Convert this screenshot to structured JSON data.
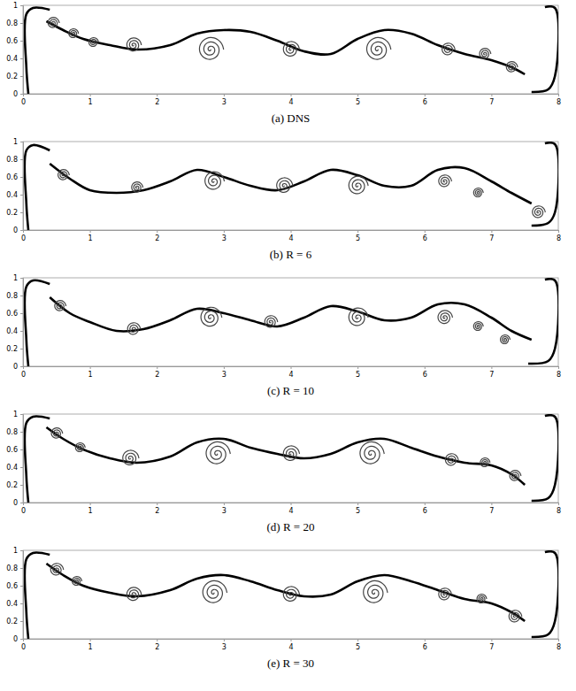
{
  "chart_data": [
    {
      "type": "contour",
      "title": "(a) DNS",
      "xlim": [
        0,
        8
      ],
      "ylim": [
        0,
        1
      ],
      "xticks": [
        0,
        1,
        2,
        3,
        4,
        5,
        6,
        7,
        8
      ],
      "yticks": [
        0,
        0.2,
        0.4,
        0.6,
        0.8,
        1
      ],
      "series": [
        {
          "type": "line",
          "color": "#000000",
          "x": [
            0.35,
            0.6,
            0.9,
            1.3,
            1.7,
            2.2,
            2.6,
            3.0,
            3.4,
            3.8,
            4.2,
            4.6,
            5.0,
            5.4,
            5.8,
            6.2,
            6.6,
            7.0,
            7.3,
            7.5
          ],
          "values": [
            0.82,
            0.72,
            0.62,
            0.55,
            0.5,
            0.55,
            0.68,
            0.72,
            0.7,
            0.6,
            0.48,
            0.45,
            0.62,
            0.72,
            0.68,
            0.55,
            0.45,
            0.38,
            0.3,
            0.22
          ]
        },
        {
          "type": "line",
          "color": "#000000",
          "x": [
            0.08,
            0.05,
            0.05,
            0.15,
            0.4
          ],
          "values": [
            0.0,
            0.3,
            0.9,
            0.97,
            0.95
          ]
        },
        {
          "type": "line",
          "color": "#000000",
          "x": [
            7.6,
            7.85,
            7.95,
            7.95,
            7.8
          ],
          "values": [
            0.02,
            0.05,
            0.2,
            0.97,
            0.98
          ]
        },
        {
          "type": "scatter",
          "marker": "spiral",
          "color": "#444444",
          "x": [
            0.45,
            0.75,
            1.05,
            1.65,
            2.8,
            4.0,
            5.3,
            6.35,
            6.9,
            7.3
          ],
          "values": [
            0.8,
            0.68,
            0.58,
            0.55,
            0.5,
            0.5,
            0.5,
            0.5,
            0.45,
            0.3
          ],
          "size": [
            0.07,
            0.06,
            0.06,
            0.09,
            0.15,
            0.1,
            0.15,
            0.08,
            0.07,
            0.07
          ]
        }
      ]
    },
    {
      "type": "contour",
      "title": "(b) R = 6",
      "xlim": [
        0,
        8
      ],
      "ylim": [
        0,
        1
      ],
      "xticks": [
        0,
        1,
        2,
        3,
        4,
        5,
        6,
        7,
        8
      ],
      "yticks": [
        0,
        0.2,
        0.4,
        0.6,
        0.8,
        1
      ],
      "series": [
        {
          "type": "line",
          "color": "#000000",
          "x": [
            0.4,
            0.7,
            1.0,
            1.4,
            1.8,
            2.2,
            2.6,
            3.0,
            3.4,
            3.8,
            4.2,
            4.6,
            5.0,
            5.4,
            5.8,
            6.2,
            6.6,
            7.0,
            7.3,
            7.6
          ],
          "values": [
            0.75,
            0.58,
            0.45,
            0.42,
            0.45,
            0.55,
            0.68,
            0.6,
            0.5,
            0.45,
            0.55,
            0.68,
            0.62,
            0.5,
            0.5,
            0.68,
            0.7,
            0.55,
            0.42,
            0.3
          ]
        },
        {
          "type": "line",
          "color": "#000000",
          "x": [
            0.08,
            0.05,
            0.05,
            0.15,
            0.4
          ],
          "values": [
            0.0,
            0.3,
            0.9,
            0.96,
            0.9
          ]
        },
        {
          "type": "line",
          "color": "#000000",
          "x": [
            7.6,
            7.85,
            7.95,
            7.95,
            7.8
          ],
          "values": [
            0.05,
            0.08,
            0.2,
            0.97,
            0.98
          ]
        },
        {
          "type": "scatter",
          "marker": "spiral",
          "color": "#444444",
          "x": [
            0.6,
            1.7,
            2.85,
            3.9,
            5.0,
            6.3,
            6.8,
            7.7
          ],
          "values": [
            0.62,
            0.48,
            0.55,
            0.5,
            0.5,
            0.55,
            0.42,
            0.2
          ],
          "size": [
            0.07,
            0.07,
            0.12,
            0.1,
            0.12,
            0.08,
            0.06,
            0.08
          ]
        }
      ]
    },
    {
      "type": "contour",
      "title": "(c) R = 10",
      "xlim": [
        0,
        8
      ],
      "ylim": [
        0,
        1
      ],
      "xticks": [
        0,
        1,
        2,
        3,
        4,
        5,
        6,
        7,
        8
      ],
      "yticks": [
        0,
        0.2,
        0.4,
        0.6,
        0.8,
        1
      ],
      "series": [
        {
          "type": "line",
          "color": "#000000",
          "x": [
            0.4,
            0.7,
            1.0,
            1.4,
            1.8,
            2.2,
            2.6,
            3.0,
            3.4,
            3.8,
            4.2,
            4.6,
            5.0,
            5.4,
            5.8,
            6.2,
            6.6,
            7.0,
            7.3,
            7.6
          ],
          "values": [
            0.78,
            0.6,
            0.5,
            0.4,
            0.42,
            0.52,
            0.65,
            0.6,
            0.52,
            0.45,
            0.55,
            0.68,
            0.62,
            0.52,
            0.55,
            0.7,
            0.7,
            0.55,
            0.4,
            0.3
          ]
        },
        {
          "type": "line",
          "color": "#000000",
          "x": [
            0.08,
            0.05,
            0.05,
            0.15,
            0.4
          ],
          "values": [
            0.0,
            0.3,
            0.9,
            0.97,
            0.93
          ]
        },
        {
          "type": "line",
          "color": "#000000",
          "x": [
            7.55,
            7.85,
            7.95,
            7.95,
            7.8
          ],
          "values": [
            0.03,
            0.06,
            0.2,
            0.97,
            0.98
          ]
        },
        {
          "type": "scatter",
          "marker": "spiral",
          "color": "#444444",
          "x": [
            0.55,
            1.65,
            2.8,
            3.7,
            5.0,
            6.3,
            6.8,
            7.2
          ],
          "values": [
            0.68,
            0.42,
            0.55,
            0.5,
            0.55,
            0.55,
            0.45,
            0.3
          ],
          "size": [
            0.07,
            0.08,
            0.13,
            0.08,
            0.12,
            0.09,
            0.06,
            0.06
          ]
        }
      ]
    },
    {
      "type": "contour",
      "title": "(d) R = 20",
      "xlim": [
        0,
        8
      ],
      "ylim": [
        0,
        1
      ],
      "xticks": [
        0,
        1,
        2,
        3,
        4,
        5,
        6,
        7,
        8
      ],
      "yticks": [
        0,
        0.2,
        0.4,
        0.6,
        0.8,
        1
      ],
      "series": [
        {
          "type": "line",
          "color": "#000000",
          "x": [
            0.35,
            0.6,
            0.9,
            1.3,
            1.7,
            2.2,
            2.6,
            3.0,
            3.4,
            3.8,
            4.2,
            4.6,
            5.0,
            5.4,
            5.8,
            6.2,
            6.6,
            7.0,
            7.3,
            7.5
          ],
          "values": [
            0.85,
            0.72,
            0.6,
            0.5,
            0.45,
            0.52,
            0.68,
            0.72,
            0.62,
            0.55,
            0.5,
            0.55,
            0.68,
            0.72,
            0.62,
            0.52,
            0.45,
            0.42,
            0.32,
            0.2
          ]
        },
        {
          "type": "line",
          "color": "#000000",
          "x": [
            0.08,
            0.05,
            0.05,
            0.15,
            0.4
          ],
          "values": [
            0.0,
            0.3,
            0.9,
            0.97,
            0.95
          ]
        },
        {
          "type": "line",
          "color": "#000000",
          "x": [
            7.6,
            7.85,
            7.95,
            7.95,
            7.8
          ],
          "values": [
            0.02,
            0.05,
            0.2,
            0.97,
            0.98
          ]
        },
        {
          "type": "scatter",
          "marker": "spiral",
          "color": "#444444",
          "x": [
            0.5,
            0.85,
            1.6,
            2.9,
            4.0,
            5.2,
            6.4,
            6.9,
            7.35
          ],
          "values": [
            0.78,
            0.62,
            0.5,
            0.55,
            0.55,
            0.55,
            0.48,
            0.45,
            0.3
          ],
          "size": [
            0.07,
            0.06,
            0.1,
            0.15,
            0.1,
            0.15,
            0.08,
            0.06,
            0.07
          ]
        }
      ]
    },
    {
      "type": "contour",
      "title": "(e) R = 30",
      "xlim": [
        0,
        8
      ],
      "ylim": [
        0,
        1
      ],
      "xticks": [
        0,
        1,
        2,
        3,
        4,
        5,
        6,
        7,
        8
      ],
      "yticks": [
        0,
        0.2,
        0.4,
        0.6,
        0.8,
        1
      ],
      "series": [
        {
          "type": "line",
          "color": "#000000",
          "x": [
            0.35,
            0.6,
            0.9,
            1.3,
            1.7,
            2.2,
            2.6,
            3.0,
            3.4,
            3.8,
            4.2,
            4.6,
            5.0,
            5.4,
            5.8,
            6.2,
            6.6,
            7.0,
            7.3,
            7.5
          ],
          "values": [
            0.85,
            0.72,
            0.6,
            0.52,
            0.48,
            0.55,
            0.68,
            0.72,
            0.65,
            0.55,
            0.48,
            0.5,
            0.65,
            0.72,
            0.65,
            0.55,
            0.45,
            0.4,
            0.3,
            0.2
          ]
        },
        {
          "type": "line",
          "color": "#000000",
          "x": [
            0.08,
            0.05,
            0.05,
            0.15,
            0.4
          ],
          "values": [
            0.0,
            0.3,
            0.9,
            0.97,
            0.95
          ]
        },
        {
          "type": "line",
          "color": "#000000",
          "x": [
            7.6,
            7.85,
            7.95,
            7.95,
            7.8
          ],
          "values": [
            0.02,
            0.05,
            0.2,
            0.97,
            0.98
          ]
        },
        {
          "type": "scatter",
          "marker": "spiral",
          "color": "#444444",
          "x": [
            0.5,
            0.8,
            1.65,
            2.85,
            4.0,
            5.25,
            6.3,
            6.85,
            7.35
          ],
          "values": [
            0.78,
            0.65,
            0.5,
            0.52,
            0.5,
            0.52,
            0.5,
            0.45,
            0.25
          ],
          "size": [
            0.08,
            0.06,
            0.09,
            0.15,
            0.1,
            0.15,
            0.08,
            0.06,
            0.08
          ]
        }
      ]
    }
  ]
}
